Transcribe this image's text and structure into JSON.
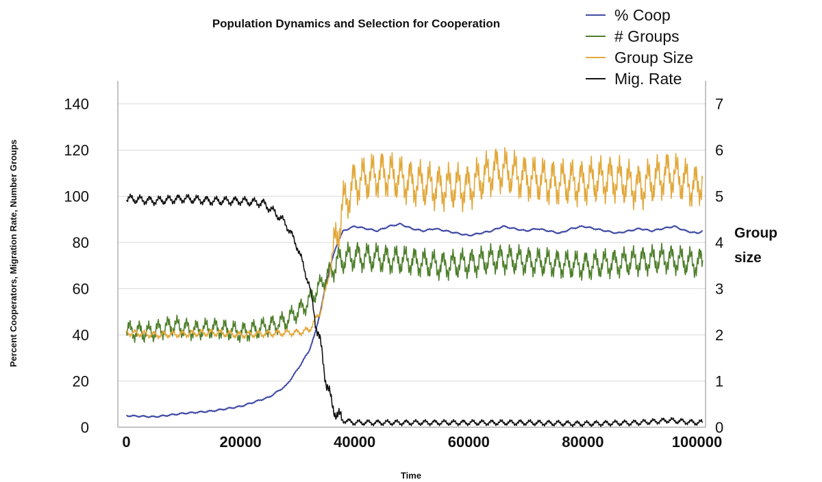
{
  "chart_data": {
    "type": "line",
    "title": "Population Dynamics and Selection for Cooperation",
    "xlabel": "Time",
    "ylabel": "Percent Cooperators, Migration Rate, Number Groups",
    "y2label": "Group size",
    "xlim": [
      -1500,
      101500
    ],
    "ylim": [
      0,
      150
    ],
    "y2lim": [
      0,
      7.5
    ],
    "x_ticks": [
      0,
      20000,
      40000,
      60000,
      80000,
      100000
    ],
    "y_ticks": [
      0,
      20,
      40,
      60,
      80,
      100,
      120,
      140
    ],
    "y2_ticks": [
      0,
      1,
      2,
      3,
      4,
      5,
      6,
      7
    ],
    "grid": true,
    "legend_position": "top-right",
    "series": [
      {
        "name": "% Coop",
        "color": "#3f4aa3",
        "axis": "left",
        "x": [
          0,
          5000,
          10000,
          15000,
          20000,
          25000,
          28000,
          30000,
          32000,
          33000,
          34000,
          35000,
          36000,
          37000,
          38000,
          40000,
          42000,
          44000,
          46000,
          48000,
          50000,
          52000,
          54000,
          56000,
          58000,
          60000,
          62000,
          64000,
          66000,
          68000,
          70000,
          72000,
          74000,
          76000,
          78000,
          80000,
          82000,
          84000,
          86000,
          88000,
          90000,
          92000,
          94000,
          96000,
          98000,
          100000,
          101000
        ],
        "values": [
          5,
          4.5,
          6,
          7,
          9,
          13,
          18,
          25,
          33,
          40,
          50,
          62,
          72,
          80,
          85,
          87,
          86,
          85,
          87,
          88,
          86,
          85,
          86,
          85,
          84,
          83,
          84,
          85,
          87,
          86,
          85,
          86,
          85,
          84,
          86,
          87,
          86,
          85,
          84,
          85,
          86,
          85,
          86,
          87,
          85,
          84,
          85
        ]
      },
      {
        "name": "# Groups",
        "color": "#4e7f2c",
        "axis": "left",
        "x": [
          0,
          4000,
          8000,
          12000,
          16000,
          20000,
          24000,
          28000,
          31000,
          33000,
          35000,
          37000,
          40000,
          45000,
          50000,
          55000,
          60000,
          65000,
          70000,
          75000,
          80000,
          85000,
          90000,
          95000,
          100000,
          101000
        ],
        "values": [
          42,
          41,
          44,
          42,
          43,
          41,
          43,
          46,
          52,
          58,
          65,
          72,
          74,
          73,
          72,
          70,
          71,
          73,
          72,
          71,
          70,
          71,
          72,
          73,
          71,
          72
        ]
      },
      {
        "name": "Group Size",
        "color": "#e2a83b",
        "axis": "right",
        "x": [
          0,
          5000,
          10000,
          15000,
          20000,
          25000,
          30000,
          32000,
          34000,
          35000,
          36000,
          37000,
          38000,
          40000,
          45000,
          50000,
          55000,
          60000,
          65000,
          70000,
          75000,
          80000,
          85000,
          90000,
          95000,
          100000,
          101000
        ],
        "values": [
          2.05,
          2.0,
          2.02,
          2.05,
          2.0,
          2.03,
          2.05,
          2.1,
          2.5,
          3.0,
          3.6,
          4.2,
          4.8,
          5.3,
          5.5,
          5.3,
          5.2,
          5.2,
          5.6,
          5.4,
          5.3,
          5.3,
          5.4,
          5.2,
          5.5,
          5.2,
          5.4
        ]
      },
      {
        "name": "Mig. Rate",
        "color": "#111111",
        "axis": "left",
        "x": [
          0,
          5000,
          10000,
          15000,
          20000,
          24000,
          26000,
          28000,
          30000,
          32000,
          33000,
          34000,
          35000,
          36000,
          37000,
          38000,
          40000,
          50000,
          60000,
          70000,
          80000,
          90000,
          95000,
          100000,
          101000
        ],
        "values": [
          99,
          98,
          99,
          98,
          98,
          97,
          93,
          88,
          78,
          62,
          48,
          36,
          20,
          10,
          5,
          3,
          2,
          2,
          2,
          2,
          1.5,
          2,
          3,
          2,
          2
        ]
      }
    ]
  }
}
